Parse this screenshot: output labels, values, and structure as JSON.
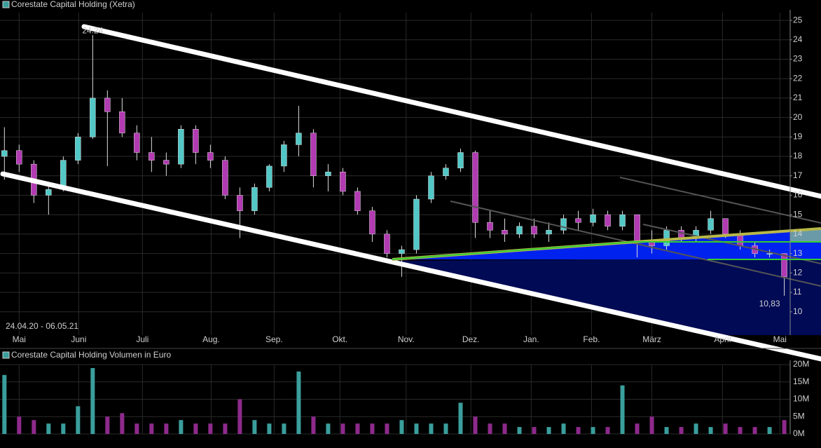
{
  "chart_data": [
    {
      "type": "candlestick",
      "title": "Corestate Capital Holding (Xetra)",
      "subtitle": "24.04.20 - 06.05.21",
      "up_color": "#52c8c6",
      "down_color": "#b23ab2",
      "open": [
        18.0,
        18.3,
        17.6,
        16.0,
        16.3,
        17.8,
        19.0,
        21.0,
        20.3,
        19.2,
        18.2,
        17.8,
        17.6,
        19.4,
        18.2,
        17.8,
        16.0,
        15.2,
        16.4,
        17.5,
        18.6,
        19.2,
        17.0,
        17.2,
        16.2,
        15.2,
        14.0,
        13.0,
        13.2,
        15.8,
        17.0,
        17.4,
        18.2,
        14.6,
        14.2,
        14.0,
        14.4,
        14.0,
        14.2,
        14.8,
        14.6,
        15.0,
        14.4,
        15.0,
        13.6,
        13.4,
        14.2,
        13.8,
        14.2,
        14.8,
        14.0,
        13.4,
        13.0,
        13.0
      ],
      "high": [
        19.5,
        18.6,
        17.8,
        16.6,
        18.0,
        19.2,
        24.24,
        21.4,
        21.0,
        19.6,
        19.0,
        18.2,
        19.6,
        19.6,
        18.6,
        18.0,
        16.4,
        16.6,
        17.6,
        18.8,
        20.6,
        19.4,
        17.6,
        17.4,
        16.4,
        15.4,
        14.2,
        13.4,
        16.0,
        17.2,
        17.6,
        18.4,
        18.3,
        15.2,
        14.8,
        14.6,
        14.8,
        14.6,
        15.0,
        15.2,
        15.3,
        15.2,
        15.2,
        15.0,
        14.2,
        14.4,
        14.4,
        14.4,
        15.2,
        14.8,
        14.2,
        13.6,
        13.2,
        13.0
      ],
      "low": [
        16.8,
        17.2,
        15.6,
        15.0,
        16.2,
        17.6,
        18.9,
        17.5,
        19.0,
        17.8,
        17.2,
        17.0,
        17.4,
        17.6,
        17.4,
        15.8,
        13.8,
        15.0,
        16.2,
        17.2,
        18.0,
        16.4,
        16.2,
        16.0,
        15.0,
        13.6,
        12.8,
        11.8,
        13.0,
        15.6,
        16.8,
        17.2,
        13.8,
        13.8,
        13.6,
        13.8,
        13.8,
        13.6,
        14.0,
        14.2,
        14.4,
        14.2,
        14.2,
        12.8,
        13.0,
        13.2,
        13.6,
        13.6,
        14.0,
        13.8,
        13.2,
        12.8,
        12.8,
        10.83
      ],
      "close": [
        18.3,
        17.6,
        16.0,
        16.3,
        17.8,
        19.0,
        21.0,
        20.3,
        19.2,
        18.2,
        17.8,
        17.6,
        19.4,
        18.2,
        17.8,
        16.0,
        15.2,
        16.4,
        17.5,
        18.6,
        19.2,
        17.0,
        17.2,
        16.2,
        15.2,
        14.0,
        13.0,
        13.2,
        15.8,
        17.0,
        17.4,
        18.2,
        14.6,
        14.2,
        14.0,
        14.4,
        14.0,
        14.2,
        14.8,
        14.6,
        15.0,
        14.4,
        15.0,
        13.6,
        13.4,
        14.2,
        13.8,
        14.2,
        14.8,
        14.0,
        13.4,
        13.0,
        13.0,
        11.8
      ],
      "xlim": [
        -0.3,
        53.4
      ],
      "ylim": [
        8.8,
        25.4
      ],
      "xticks": [
        {
          "value": 1.0,
          "label": "Mai"
        },
        {
          "value": 5.05,
          "label": "Juni"
        },
        {
          "value": 9.38,
          "label": "Juli"
        },
        {
          "value": 14.05,
          "label": "Aug."
        },
        {
          "value": 18.33,
          "label": "Sep."
        },
        {
          "value": 22.8,
          "label": "Okt."
        },
        {
          "value": 27.3,
          "label": "Nov."
        },
        {
          "value": 31.7,
          "label": "Dez."
        },
        {
          "value": 35.8,
          "label": "Jan."
        },
        {
          "value": 39.9,
          "label": "Feb."
        },
        {
          "value": 44.0,
          "label": "März"
        },
        {
          "value": 48.8,
          "label": "April"
        },
        {
          "value": 52.7,
          "label": "Mai"
        }
      ],
      "yticks": [
        10,
        11,
        12,
        13,
        14,
        15,
        16,
        17,
        18,
        19,
        20,
        21,
        22,
        23,
        24,
        25
      ],
      "annotations": [
        {
          "x": 6,
          "value": 24.24,
          "label": "24.24"
        },
        {
          "x": 53,
          "value": 10.83,
          "label": "10,83"
        }
      ],
      "grid": true
    },
    {
      "type": "bar",
      "title": "Corestate Capital Holding Volumen in Euro",
      "values": [
        17000000,
        5000000,
        4000000,
        3000000,
        3000000,
        8000000,
        19000000,
        5000000,
        6000000,
        3000000,
        3000000,
        3000000,
        4000000,
        3000000,
        3000000,
        3000000,
        10000000,
        4000000,
        3000000,
        3000000,
        18000000,
        5000000,
        3000000,
        3000000,
        3000000,
        3000000,
        3000000,
        4000000,
        3000000,
        3000000,
        3000000,
        9000000,
        5000000,
        3000000,
        3000000,
        2000000,
        2000000,
        2000000,
        3000000,
        2000000,
        2000000,
        2000000,
        14000000,
        3000000,
        5000000,
        2000000,
        2000000,
        3000000,
        2000000,
        3000000,
        2000000,
        2000000,
        2000000,
        4000000
      ],
      "up_color": "#3a9e9c",
      "down_color": "#8e2a8c",
      "ylim": [
        0,
        20000000
      ],
      "yticks": [
        {
          "value": 0,
          "label": "0M"
        },
        {
          "value": 5000000,
          "label": "5M"
        },
        {
          "value": 10000000,
          "label": "10M"
        },
        {
          "value": 15000000,
          "label": "15M"
        },
        {
          "value": 20000000,
          "label": "20M"
        }
      ],
      "grid": true
    }
  ]
}
